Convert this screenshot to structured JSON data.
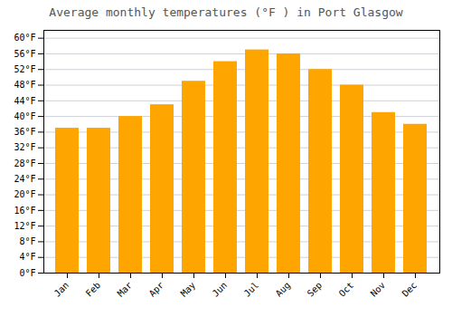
{
  "chart_data": {
    "type": "bar",
    "title": "Average monthly temperatures (°F ) in Port Glasgow",
    "categories": [
      "Jan",
      "Feb",
      "Mar",
      "Apr",
      "May",
      "Jun",
      "Jul",
      "Aug",
      "Sep",
      "Oct",
      "Nov",
      "Dec"
    ],
    "values": [
      37,
      37,
      40,
      43,
      49,
      54,
      57,
      56,
      52,
      48,
      41,
      38
    ],
    "color": "#FFA500",
    "ylim": [
      0,
      62
    ],
    "yticks": [
      {
        "value": 0,
        "label": "0°F"
      },
      {
        "value": 4,
        "label": "4°F"
      },
      {
        "value": 8,
        "label": "8°F"
      },
      {
        "value": 12,
        "label": "12°F"
      },
      {
        "value": 16,
        "label": "16°F"
      },
      {
        "value": 20,
        "label": "20°F"
      },
      {
        "value": 24,
        "label": "24°F"
      },
      {
        "value": 28,
        "label": "28°F"
      },
      {
        "value": 32,
        "label": "32°F"
      },
      {
        "value": 36,
        "label": "36°F"
      },
      {
        "value": 40,
        "label": "40°F"
      },
      {
        "value": 44,
        "label": "44°F"
      },
      {
        "value": 48,
        "label": "48°F"
      },
      {
        "value": 52,
        "label": "52°F"
      },
      {
        "value": 56,
        "label": "56°F"
      },
      {
        "value": 60,
        "label": "60°F"
      }
    ],
    "grid": true
  }
}
